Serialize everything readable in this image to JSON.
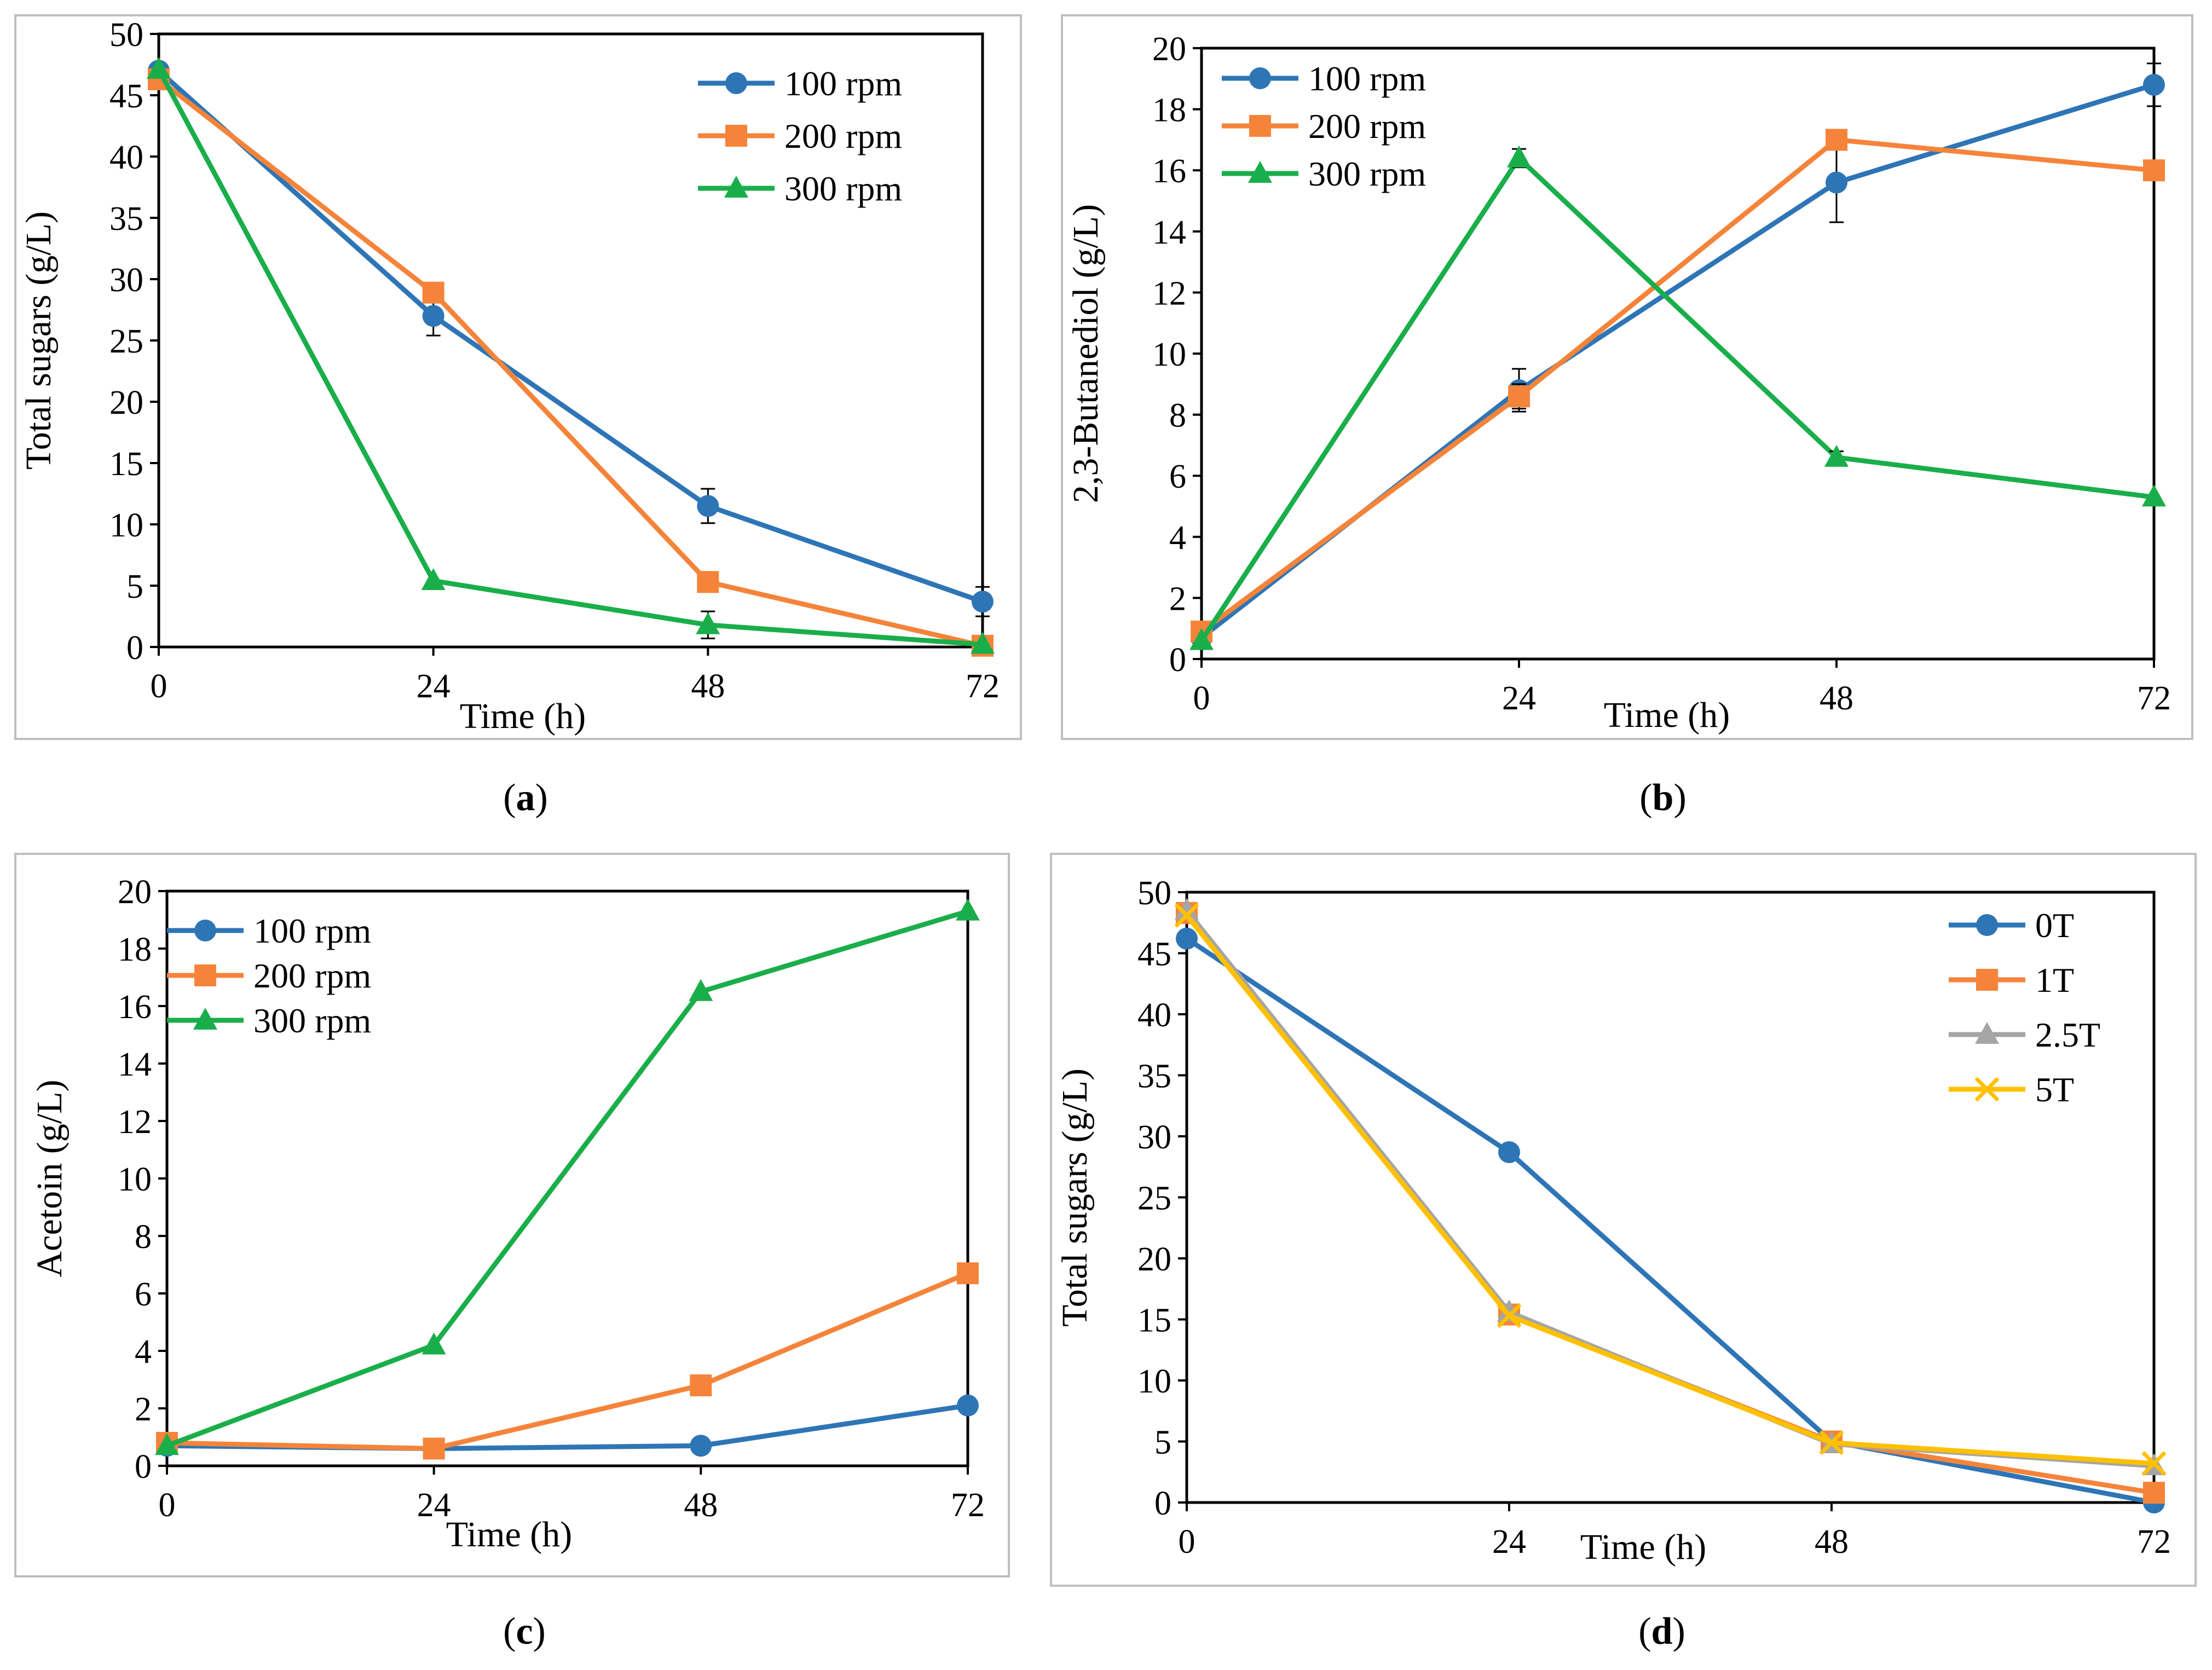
{
  "colors": {
    "blue": "#2e75b6",
    "orange": "#f5843a",
    "green": "#1aae4a",
    "gray": "#a5a5a5",
    "yellow": "#ffc000"
  },
  "chart_data": [
    {
      "id": "a",
      "caption": "a",
      "type": "line",
      "title": "",
      "xlabel": "Time (h)",
      "ylabel": "Total sugars (g/L)",
      "x": [
        0,
        24,
        48,
        72
      ],
      "xticks": [
        "0",
        "24",
        "48",
        "72"
      ],
      "xlim": [
        0,
        72
      ],
      "ylim": [
        0,
        50
      ],
      "yticks": [
        0,
        5,
        10,
        15,
        20,
        25,
        30,
        35,
        40,
        45,
        50
      ],
      "legend": "top-right",
      "series": [
        {
          "name": "100 rpm",
          "marker": "circle",
          "color": "blue",
          "values": [
            47.0,
            27.0,
            11.5,
            3.7
          ],
          "errors": [
            0,
            1.6,
            1.4,
            1.2
          ]
        },
        {
          "name": "200 rpm",
          "marker": "square",
          "color": "orange",
          "values": [
            46.3,
            28.9,
            5.3,
            0.1
          ],
          "errors": [
            0,
            0,
            0,
            0
          ]
        },
        {
          "name": "300 rpm",
          "marker": "triangle",
          "color": "green",
          "values": [
            47.1,
            5.4,
            1.8,
            0.2
          ],
          "errors": [
            0,
            0,
            1.1,
            0
          ]
        }
      ]
    },
    {
      "id": "b",
      "caption": "b",
      "type": "line",
      "title": "",
      "xlabel": "Time (h)",
      "ylabel": "2,3-Butanediol (g/L)",
      "x": [
        0,
        24,
        48,
        72
      ],
      "xticks": [
        "0",
        "24",
        "48",
        "72"
      ],
      "xlim": [
        0,
        72
      ],
      "ylim": [
        0,
        20
      ],
      "yticks": [
        0,
        2,
        4,
        6,
        8,
        10,
        12,
        14,
        16,
        18,
        20
      ],
      "legend": "top-left",
      "series": [
        {
          "name": "100 rpm",
          "marker": "circle",
          "color": "blue",
          "values": [
            0.7,
            8.8,
            15.6,
            18.8
          ],
          "errors": [
            0,
            0.7,
            1.3,
            0.7
          ]
        },
        {
          "name": "200 rpm",
          "marker": "square",
          "color": "orange",
          "values": [
            0.9,
            8.6,
            17.0,
            16.0
          ],
          "errors": [
            0,
            0.4,
            0,
            0
          ]
        },
        {
          "name": "300 rpm",
          "marker": "triangle",
          "color": "green",
          "values": [
            0.6,
            16.4,
            6.6,
            5.3
          ],
          "errors": [
            0,
            0.3,
            0.2,
            0
          ]
        }
      ]
    },
    {
      "id": "c",
      "caption": "c",
      "type": "line",
      "title": "",
      "xlabel": "Time (h)",
      "ylabel": "Acetoin (g/L)",
      "x": [
        0,
        24,
        48,
        72
      ],
      "xticks": [
        "0",
        "24",
        "48",
        "72"
      ],
      "xlim": [
        0,
        72
      ],
      "ylim": [
        0,
        20
      ],
      "yticks": [
        0,
        2,
        4,
        6,
        8,
        10,
        12,
        14,
        16,
        18,
        20
      ],
      "legend": "top-left",
      "series": [
        {
          "name": "100 rpm",
          "marker": "circle",
          "color": "blue",
          "values": [
            0.7,
            0.6,
            0.7,
            2.1
          ],
          "errors": [
            0,
            0,
            0,
            0
          ]
        },
        {
          "name": "200 rpm",
          "marker": "square",
          "color": "orange",
          "values": [
            0.8,
            0.6,
            2.8,
            6.7
          ],
          "errors": [
            0,
            0,
            0,
            0
          ]
        },
        {
          "name": "300 rpm",
          "marker": "triangle",
          "color": "green",
          "values": [
            0.7,
            4.2,
            16.5,
            19.3
          ],
          "errors": [
            0,
            0,
            0,
            0
          ]
        }
      ]
    },
    {
      "id": "d",
      "caption": "d",
      "type": "line",
      "title": "",
      "xlabel": "Time (h)",
      "ylabel": "Total sugars (g/L)",
      "x": [
        0,
        24,
        48,
        72
      ],
      "xticks": [
        "0",
        "24",
        "48",
        "72"
      ],
      "xlim": [
        0,
        72
      ],
      "ylim": [
        0,
        50
      ],
      "yticks": [
        0,
        5,
        10,
        15,
        20,
        25,
        30,
        35,
        40,
        45,
        50
      ],
      "legend": "top-right",
      "series": [
        {
          "name": "0T",
          "marker": "circle",
          "color": "blue",
          "values": [
            46.2,
            28.7,
            5.0,
            0.0
          ],
          "errors": [
            0,
            0,
            0,
            0
          ]
        },
        {
          "name": "1T",
          "marker": "square",
          "color": "orange",
          "values": [
            48.3,
            15.4,
            5.0,
            0.8
          ],
          "errors": [
            0,
            0,
            0,
            0
          ]
        },
        {
          "name": "2.5T",
          "marker": "triangle",
          "color": "gray",
          "values": [
            48.5,
            15.6,
            4.8,
            3.0
          ],
          "errors": [
            0,
            0,
            0,
            0
          ]
        },
        {
          "name": "5T",
          "marker": "cross",
          "color": "yellow",
          "values": [
            48.1,
            15.3,
            4.9,
            3.2
          ],
          "errors": [
            0,
            0,
            0,
            0
          ]
        }
      ]
    }
  ]
}
